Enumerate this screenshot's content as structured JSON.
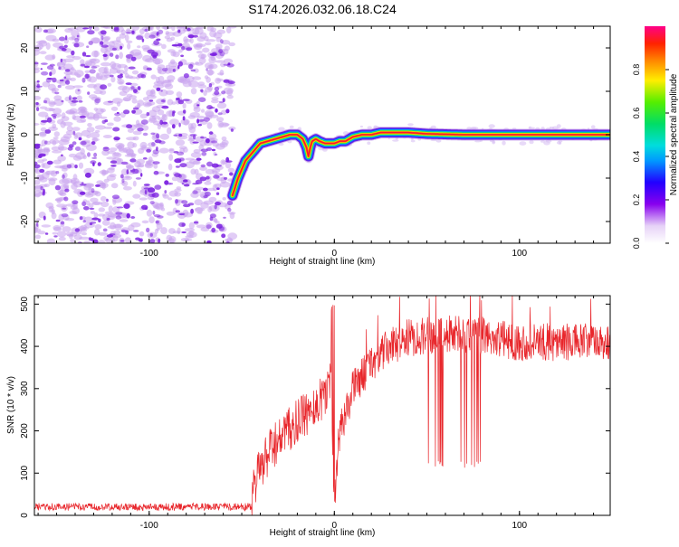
{
  "title": "S174.2026.032.06.18.C24",
  "colors": {
    "signal": "#e8262b",
    "scatter": "#7a1fe0",
    "scatter_light": "#c9a3ef"
  },
  "chart_data": [
    {
      "type": "heatmap",
      "name": "spectrogram",
      "xlabel": "Height of straight line (km)",
      "ylabel": "Frequency (Hz)",
      "xlim": [
        -162,
        149
      ],
      "ylim": [
        -25,
        25
      ],
      "xticks": [
        -100,
        0,
        100
      ],
      "xtick_labels": [
        "-100",
        "0",
        "100"
      ],
      "yticks": [
        20,
        10,
        0,
        -10,
        -20
      ],
      "ytick_labels": [
        "20",
        "10",
        "0",
        "-10",
        "-20"
      ],
      "noise_region": [
        -162,
        -55
      ],
      "ridge": {
        "x": [
          -55,
          -52,
          -48,
          -44,
          -40,
          -36,
          -32,
          -28,
          -24,
          -20,
          -17,
          -15,
          -14,
          -13,
          -12,
          -10,
          -8,
          -5,
          0,
          3,
          6,
          10,
          15,
          20,
          25,
          30,
          40,
          50,
          70,
          100,
          149
        ],
        "y": [
          -14,
          -10,
          -6,
          -4,
          -2,
          -1.5,
          -1,
          -0.5,
          0,
          0,
          -1,
          -3,
          -5,
          -3,
          -1.5,
          -1,
          -1.5,
          -2,
          -2,
          -1.5,
          -1.5,
          -0.5,
          0,
          0,
          0.5,
          0.5,
          0.5,
          0.2,
          0,
          0,
          0
        ]
      }
    },
    {
      "type": "colorbar",
      "name": "colorbar",
      "label": "Normalized spectral amplitude",
      "range": [
        0,
        1
      ],
      "ticks": [
        0.0,
        0.2,
        0.4,
        0.6,
        0.8
      ],
      "tick_labels": [
        "0.0",
        "0.2",
        "0.4",
        "0.6",
        "0.8"
      ],
      "stops": [
        {
          "v": 0.0,
          "c": "#ffffff"
        },
        {
          "v": 0.08,
          "c": "#e6d2f7"
        },
        {
          "v": 0.18,
          "c": "#8800ee"
        },
        {
          "v": 0.28,
          "c": "#2200ff"
        },
        {
          "v": 0.38,
          "c": "#0099ff"
        },
        {
          "v": 0.45,
          "c": "#00dddd"
        },
        {
          "v": 0.55,
          "c": "#00dd66"
        },
        {
          "v": 0.65,
          "c": "#55ee00"
        },
        {
          "v": 0.75,
          "c": "#ffee00"
        },
        {
          "v": 0.84,
          "c": "#ff8800"
        },
        {
          "v": 0.92,
          "c": "#ff2200"
        },
        {
          "v": 1.0,
          "c": "#ff0088"
        }
      ]
    },
    {
      "type": "line",
      "name": "snr",
      "xlabel": "Height of straight line (km)",
      "ylabel": "SNR (10 * v/v)",
      "xlim": [
        -162,
        149
      ],
      "ylim": [
        0,
        520
      ],
      "xticks": [
        -100,
        0,
        100
      ],
      "xtick_labels": [
        "-100",
        "0",
        "100"
      ],
      "yticks": [
        0,
        100,
        200,
        300,
        400,
        500
      ],
      "ytick_labels": [
        "0",
        "100",
        "200",
        "300",
        "400",
        "500"
      ],
      "envelope": {
        "x": [
          -162,
          -45,
          -42,
          -35,
          -30,
          -20,
          -10,
          -5,
          -2,
          0,
          2,
          10,
          20,
          30,
          40,
          60,
          80,
          100,
          149
        ],
        "y": [
          20,
          22,
          90,
          150,
          180,
          220,
          260,
          290,
          320,
          10,
          180,
          300,
          360,
          400,
          420,
          430,
          425,
          410,
          410
        ]
      },
      "dropouts": {
        "x_range": [
          50,
          80
        ],
        "low_value": 110
      }
    }
  ]
}
